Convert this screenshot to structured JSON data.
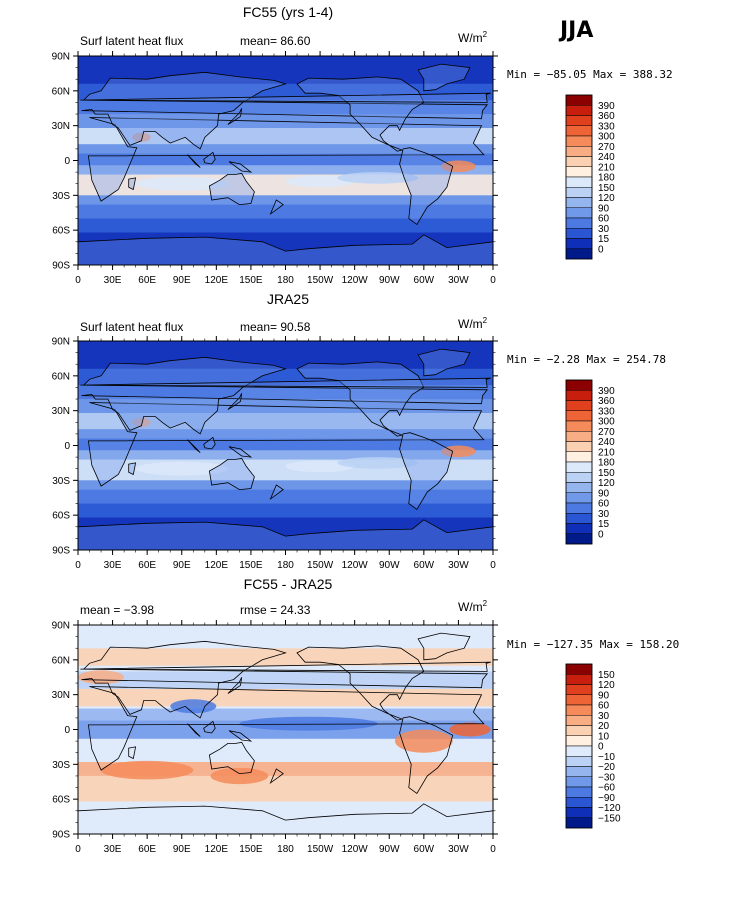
{
  "season": "JJA",
  "units_base": "W/m",
  "units_sup": "2",
  "lat_ticks": [
    "90N",
    "60N",
    "30N",
    "0",
    "30S",
    "60S",
    "90S"
  ],
  "lon_ticks": [
    "0",
    "30E",
    "60E",
    "90E",
    "120E",
    "150E",
    "180",
    "150W",
    "120W",
    "90W",
    "60W",
    "30W",
    "0"
  ],
  "panels": [
    {
      "title": "FC55 (yrs 1-4)",
      "left_label": "Surf latent heat flux",
      "center_label": "mean=  86.60",
      "minmax": "Min = −85.05 Max = 388.32",
      "colorbar_labels": [
        "390",
        "360",
        "330",
        "300",
        "270",
        "240",
        "210",
        "180",
        "150",
        "120",
        "90",
        "60",
        "30",
        "15",
        "0"
      ],
      "colorbar_colors": [
        "#8b0000",
        "#c81e0e",
        "#e0401e",
        "#ee6436",
        "#f58b5a",
        "#f8ad85",
        "#fbd1b3",
        "#fff0e1",
        "#dce9fa",
        "#bbd2f5",
        "#95b5ef",
        "#7199ea",
        "#4c7ae2",
        "#2a56d4",
        "#0f2fb8",
        "#001a8a"
      ]
    },
    {
      "title": "JRA25",
      "left_label": "Surf latent heat flux",
      "center_label": "mean=  90.58",
      "minmax": "Min =  −2.28 Max = 254.78",
      "colorbar_labels": [
        "390",
        "360",
        "330",
        "300",
        "270",
        "240",
        "210",
        "180",
        "150",
        "120",
        "90",
        "60",
        "30",
        "15",
        "0"
      ],
      "colorbar_colors": [
        "#8b0000",
        "#c81e0e",
        "#e0401e",
        "#ee6436",
        "#f58b5a",
        "#f8ad85",
        "#fbd1b3",
        "#fff0e1",
        "#dce9fa",
        "#bbd2f5",
        "#95b5ef",
        "#7199ea",
        "#4c7ae2",
        "#2a56d4",
        "#0f2fb8",
        "#001a8a"
      ]
    },
    {
      "title": "FC55 - JRA25",
      "left_label": "mean =  −3.98",
      "center_label": "rmse =  24.33",
      "minmax": "Min = −127.35 Max = 158.20",
      "colorbar_labels": [
        "150",
        "120",
        "90",
        "60",
        "30",
        "20",
        "10",
        "0",
        "−10",
        "−20",
        "−30",
        "−60",
        "−90",
        "−120",
        "−150"
      ],
      "colorbar_colors": [
        "#8b0000",
        "#c81e0e",
        "#e0401e",
        "#ee6436",
        "#f58b5a",
        "#f8ad85",
        "#fbd1b3",
        "#fff0e1",
        "#dfeafa",
        "#bbd2f5",
        "#95b5ef",
        "#7199ea",
        "#4c7ae2",
        "#2a56d4",
        "#0f2fb8",
        "#001a8a"
      ]
    }
  ],
  "chart_data": [
    {
      "type": "heatmap",
      "title": "FC55 (yrs 1-4)",
      "variable": "Surf latent heat flux",
      "units": "W/m2",
      "mean": 86.6,
      "min": -85.05,
      "max": 388.32,
      "xrange": [
        0,
        360
      ],
      "yrange": [
        -90,
        90
      ],
      "levels": [
        0,
        15,
        30,
        60,
        90,
        120,
        150,
        180,
        210,
        240,
        270,
        300,
        330,
        360,
        390
      ]
    },
    {
      "type": "heatmap",
      "title": "JRA25",
      "variable": "Surf latent heat flux",
      "units": "W/m2",
      "mean": 90.58,
      "min": -2.28,
      "max": 254.78,
      "xrange": [
        0,
        360
      ],
      "yrange": [
        -90,
        90
      ],
      "levels": [
        0,
        15,
        30,
        60,
        90,
        120,
        150,
        180,
        210,
        240,
        270,
        300,
        330,
        360,
        390
      ]
    },
    {
      "type": "heatmap",
      "title": "FC55 - JRA25",
      "units": "W/m2",
      "mean": -3.98,
      "rmse": 24.33,
      "min": -127.35,
      "max": 158.2,
      "xrange": [
        0,
        360
      ],
      "yrange": [
        -90,
        90
      ],
      "levels": [
        -150,
        -120,
        -90,
        -60,
        -30,
        -20,
        -10,
        0,
        10,
        20,
        30,
        60,
        90,
        120,
        150
      ]
    }
  ]
}
